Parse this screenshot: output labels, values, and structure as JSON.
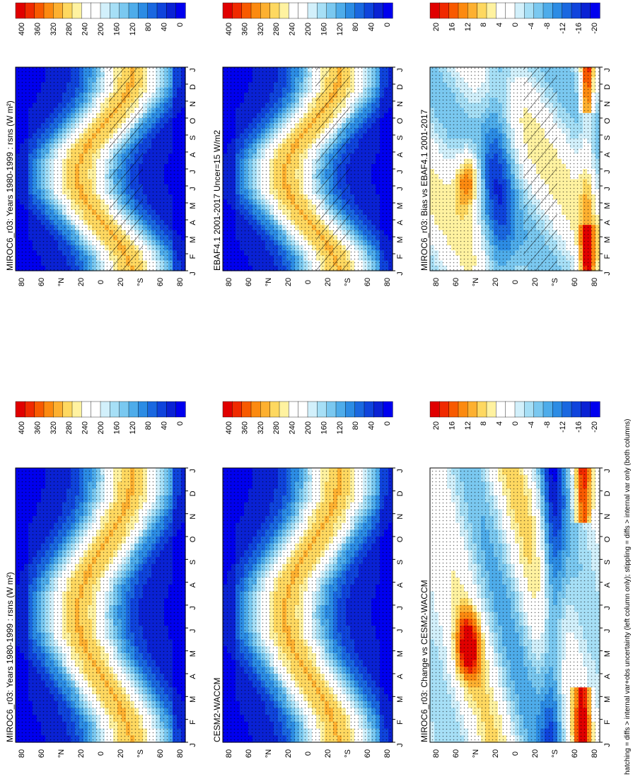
{
  "footer": "hatching = diffs > internal var+obs uncertainty (left column only); stippling = diffs > internal var only (both columns)",
  "time_ticks": [
    "J",
    "F",
    "M",
    "A",
    "M",
    "J",
    "J",
    "A",
    "S",
    "O",
    "N",
    "D",
    "J"
  ],
  "lat_ticks": [
    "80",
    "60",
    "°N",
    "20",
    "0",
    "20",
    "°S",
    "60",
    "80"
  ],
  "colorbars": {
    "abs": {
      "labels": [
        "400",
        "360",
        "320",
        "280",
        "240",
        "200",
        "160",
        "120",
        "80",
        "40",
        "0"
      ],
      "colors": [
        "#e00000",
        "#f02a00",
        "#f85a00",
        "#fc8a10",
        "#fdb030",
        "#fed860",
        "#fff2a0",
        "#ffffff",
        "#ffffff",
        "#d2f0fb",
        "#a6dff6",
        "#7ac8f0",
        "#4eacea",
        "#2c8ce4",
        "#1a68e0",
        "#0f44dc",
        "#0a22d4",
        "#0000ee"
      ]
    },
    "diff": {
      "labels": [
        "20",
        "16",
        "12",
        "8",
        "4",
        "0",
        "-4",
        "-8",
        "-12",
        "-16",
        "-20"
      ],
      "colors": [
        "#e00000",
        "#f02a00",
        "#f85a00",
        "#fc8a10",
        "#fdb030",
        "#fed860",
        "#fff2a0",
        "#ffffff",
        "#ffffff",
        "#d2f0fb",
        "#a6dff6",
        "#7ac8f0",
        "#4eacea",
        "#2c8ce4",
        "#1a68e0",
        "#0f44dc",
        "#0a22d4",
        "#0000ee"
      ]
    }
  },
  "panels": [
    {
      "id": "p1",
      "title": "MIROC6_r03: Years 1980-1999 : rsns (W m²)",
      "field": "sw",
      "hatch": true,
      "stipple": true,
      "cbar": "abs"
    },
    {
      "id": "p2",
      "title": "MIROC6_r03: Years 1980-1999 : rsns (W m²)",
      "field": "sw",
      "hatch": false,
      "stipple": true,
      "cbar": "abs"
    },
    {
      "id": "p3",
      "title": "EBAF4.1 2001-2017 Uncer=15 W/m2",
      "field": "sw",
      "hatch": true,
      "stipple": true,
      "cbar": "abs"
    },
    {
      "id": "p4",
      "title": "CESM2-WACCM",
      "field": "sw",
      "hatch": false,
      "stipple": true,
      "cbar": "abs"
    },
    {
      "id": "p5",
      "title": "MIROC6_r03: Bias vs EBAF4.1 2001-2017",
      "field": "bias",
      "hatch": true,
      "stipple": true,
      "cbar": "diff"
    },
    {
      "id": "p6",
      "title": "MIROC6_r03: Change vs CESM2-WACCM",
      "field": "change",
      "hatch": false,
      "stipple": true,
      "cbar": "diff"
    }
  ],
  "chart_data": [
    {
      "type": "heatmap",
      "title": "MIROC6_r03: Years 1980-1999 : rsns (W m²)",
      "variable": "rsns",
      "units": "W m²",
      "x": [
        "J",
        "F",
        "M",
        "A",
        "M",
        "J",
        "J",
        "A",
        "S",
        "O",
        "N",
        "D",
        "J"
      ],
      "y": [
        "80N",
        "60N",
        "20N",
        "0",
        "20S",
        "60S",
        "80S"
      ],
      "clim": [
        0,
        400
      ]
    },
    {
      "type": "heatmap",
      "title": "EBAF4.1 2001-2017 Uncer=15 W/m2",
      "clim": [
        0,
        400
      ]
    },
    {
      "type": "heatmap",
      "title": "CESM2-WACCM",
      "clim": [
        0,
        400
      ]
    },
    {
      "type": "heatmap",
      "title": "MIROC6_r03: Bias vs EBAF4.1 2001-2017",
      "clim": [
        -20,
        20
      ]
    },
    {
      "type": "heatmap",
      "title": "MIROC6_r03: Change vs CESM2-WACCM",
      "clim": [
        -20,
        20
      ]
    }
  ]
}
